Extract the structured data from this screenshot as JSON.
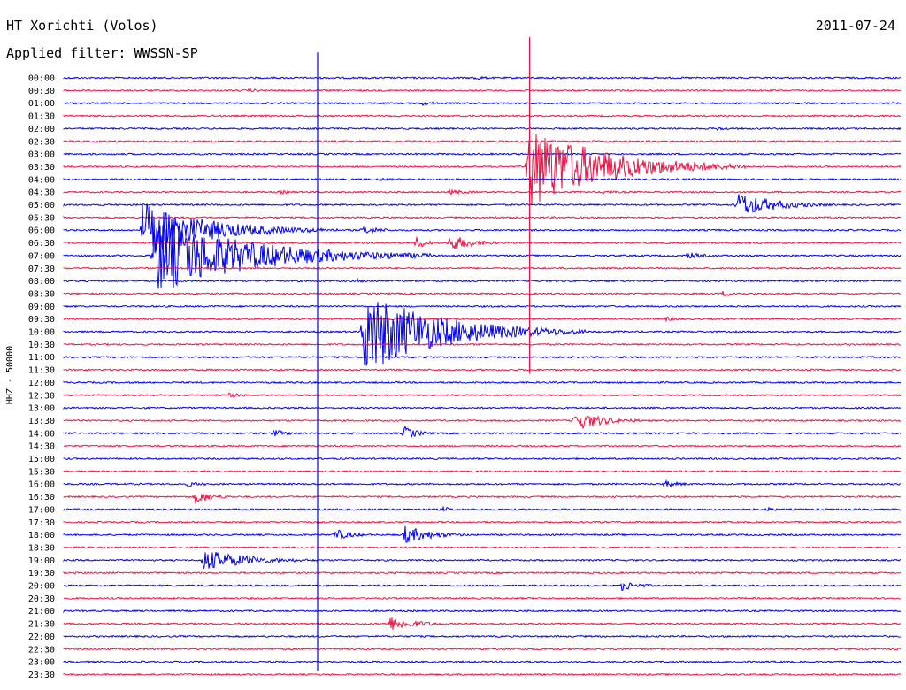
{
  "header": {
    "station": "HT Xorichti (Volos)",
    "filter": "Applied filter: WWSSN-SP",
    "date": "2011-07-24"
  },
  "chart_data": {
    "type": "line",
    "title": "HT Xorichti (Volos)",
    "subtitle": "Applied filter: WWSSN-SP",
    "date": "2011-07-24",
    "ylabel": "HHZ - 50000",
    "xlabel": "",
    "row_minutes": 30,
    "row_labels": [
      "00:00",
      "00:30",
      "01:00",
      "01:30",
      "02:00",
      "02:30",
      "03:00",
      "03:30",
      "04:00",
      "04:30",
      "05:00",
      "05:30",
      "06:00",
      "06:30",
      "07:00",
      "07:30",
      "08:00",
      "08:30",
      "09:00",
      "09:30",
      "10:00",
      "10:30",
      "11:00",
      "11:30",
      "12:00",
      "12:30",
      "13:00",
      "13:30",
      "14:00",
      "14:30",
      "15:00",
      "15:30",
      "16:00",
      "16:30",
      "17:00",
      "17:30",
      "18:00",
      "18:30",
      "19:00",
      "19:30",
      "20:00",
      "20:30",
      "21:00",
      "21:30",
      "22:00",
      "22:30",
      "23:00",
      "23:30"
    ],
    "colors": {
      "even_rows": "#0000ee",
      "odd_rows": "#ee1144"
    },
    "events": [
      {
        "row": 0,
        "minute": 14.7,
        "amp": 0.4,
        "dur": 1.5
      },
      {
        "row": 0,
        "minute": 17.8,
        "amp": 0.2,
        "dur": 2
      },
      {
        "row": 1,
        "minute": 6.6,
        "amp": 0.3,
        "dur": 2
      },
      {
        "row": 2,
        "minute": 12.8,
        "amp": 0.4,
        "dur": 2
      },
      {
        "row": 3,
        "minute": 7.2,
        "amp": 0.2,
        "dur": 2
      },
      {
        "row": 4,
        "minute": 23.4,
        "amp": 0.35,
        "dur": 2
      },
      {
        "row": 7,
        "minute": 16.6,
        "amp": 7,
        "dur": 8
      },
      {
        "row": 8,
        "minute": 11.3,
        "amp": 0.3,
        "dur": 2
      },
      {
        "row": 9,
        "minute": 7.7,
        "amp": 0.35,
        "dur": 2
      },
      {
        "row": 9,
        "minute": 13.8,
        "amp": 0.4,
        "dur": 3
      },
      {
        "row": 9,
        "minute": 19.3,
        "amp": 0.35,
        "dur": 2
      },
      {
        "row": 10,
        "minute": 24.1,
        "amp": 2.2,
        "dur": 4
      },
      {
        "row": 11,
        "minute": 15.4,
        "amp": 0.4,
        "dur": 1
      },
      {
        "row": 12,
        "minute": 2.8,
        "amp": 4.5,
        "dur": 7
      },
      {
        "row": 12,
        "minute": 10.7,
        "amp": 0.8,
        "dur": 2
      },
      {
        "row": 13,
        "minute": 12.6,
        "amp": 1.2,
        "dur": 1.2
      },
      {
        "row": 13,
        "minute": 13.8,
        "amp": 1.5,
        "dur": 2.5
      },
      {
        "row": 14,
        "minute": 3.2,
        "amp": 6.5,
        "dur": 10
      },
      {
        "row": 14,
        "minute": 6.5,
        "amp": 0.6,
        "dur": 1.5
      },
      {
        "row": 14,
        "minute": 22.3,
        "amp": 0.6,
        "dur": 2
      },
      {
        "row": 16,
        "minute": 10.5,
        "amp": 0.4,
        "dur": 2
      },
      {
        "row": 17,
        "minute": 23.6,
        "amp": 0.5,
        "dur": 2
      },
      {
        "row": 19,
        "minute": 21.5,
        "amp": 0.4,
        "dur": 2
      },
      {
        "row": 20,
        "minute": 10.7,
        "amp": 7,
        "dur": 8
      },
      {
        "row": 24,
        "minute": 8.3,
        "amp": 0.3,
        "dur": 1
      },
      {
        "row": 25,
        "minute": 5.9,
        "amp": 0.6,
        "dur": 1.5
      },
      {
        "row": 27,
        "minute": 18.3,
        "amp": 1.8,
        "dur": 3
      },
      {
        "row": 28,
        "minute": 7.5,
        "amp": 0.6,
        "dur": 2
      },
      {
        "row": 28,
        "minute": 12.2,
        "amp": 1.2,
        "dur": 1.5
      },
      {
        "row": 32,
        "minute": 4.4,
        "amp": 0.5,
        "dur": 2
      },
      {
        "row": 32,
        "minute": 21.5,
        "amp": 0.6,
        "dur": 2
      },
      {
        "row": 33,
        "minute": 4.7,
        "amp": 1.2,
        "dur": 2
      },
      {
        "row": 34,
        "minute": 13.6,
        "amp": 0.5,
        "dur": 1
      },
      {
        "row": 34,
        "minute": 25.2,
        "amp": 0.5,
        "dur": 1
      },
      {
        "row": 36,
        "minute": 9.7,
        "amp": 1,
        "dur": 2
      },
      {
        "row": 36,
        "minute": 12.2,
        "amp": 1.5,
        "dur": 3
      },
      {
        "row": 38,
        "minute": 5.0,
        "amp": 1.8,
        "dur": 5
      },
      {
        "row": 40,
        "minute": 20.0,
        "amp": 0.9,
        "dur": 2
      },
      {
        "row": 43,
        "minute": 11.7,
        "amp": 1.2,
        "dur": 3
      }
    ],
    "spikes": [
      {
        "row": 2,
        "minute": 9.1,
        "top": -2.0,
        "bottom": 46.7
      },
      {
        "row": 1,
        "minute": 16.7,
        "top": -3.2,
        "bottom": 23.3
      }
    ],
    "grid": false
  }
}
